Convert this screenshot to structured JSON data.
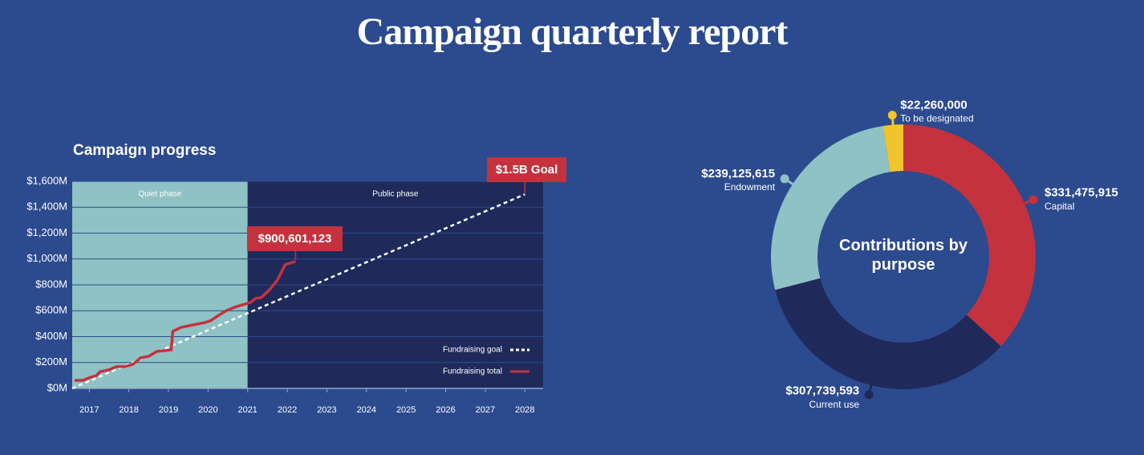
{
  "title": "Campaign quarterly report",
  "chart_data": [
    {
      "type": "line",
      "title": "Campaign progress",
      "bands": [
        {
          "label": "Quiet phase",
          "from": 2016.57,
          "to": 2021,
          "color": "#8fc2c4"
        },
        {
          "label": "Public phase",
          "from": 2021,
          "to": 2028.46,
          "color": "#1f2a5a"
        }
      ],
      "series": [
        {
          "name": "Fundraising goal",
          "color": "#ffffff",
          "style": "dashed",
          "x": [
            2016.57,
            2028
          ],
          "values": [
            0,
            1500
          ]
        },
        {
          "name": "Fundraising total",
          "color": "#c4323d",
          "style": "solid",
          "x": [
            2016.63,
            2016.84,
            2017.04,
            2017.18,
            2017.28,
            2017.49,
            2017.69,
            2017.89,
            2018.1,
            2018.3,
            2018.5,
            2018.71,
            2018.91,
            2019.07,
            2019.11,
            2019.32,
            2019.52,
            2019.72,
            2019.92,
            2020.06,
            2020.27,
            2020.47,
            2020.67,
            2020.87,
            2021.08,
            2021.2,
            2021.34,
            2021.54,
            2021.74,
            2021.95,
            2022.21
          ],
          "values": [
            62,
            62,
            87,
            99,
            130,
            143,
            168,
            168,
            186,
            236,
            248,
            286,
            292,
            298,
            441,
            472,
            484,
            497,
            509,
            522,
            565,
            602,
            627,
            646,
            665,
            696,
            702,
            758,
            832,
            957,
            981
          ]
        }
      ],
      "annotations": [
        "$900,601,123",
        "$1.5B Goal"
      ],
      "xlim": [
        2016.57,
        2028.46
      ],
      "xticks": [
        2017,
        2018,
        2019,
        2020,
        2021,
        2022,
        2023,
        2024,
        2025,
        2026,
        2027,
        2028
      ],
      "ylim": [
        0,
        1600
      ],
      "yticks": [
        {
          "value": 0,
          "label": "$0M"
        },
        {
          "value": 200,
          "label": "$200M"
        },
        {
          "value": 400,
          "label": "$400M"
        },
        {
          "value": 600,
          "label": "$600M"
        },
        {
          "value": 800,
          "label": "$800M"
        },
        {
          "value": 1000,
          "label": "$1,000M"
        },
        {
          "value": 1200,
          "label": "$1,200M"
        },
        {
          "value": 1400,
          "label": "$1,400M"
        },
        {
          "value": 1600,
          "label": "$1,600M"
        }
      ],
      "grid": true,
      "legend": "lower right"
    },
    {
      "type": "donut",
      "title": "Contributions by purpose",
      "categories": [
        "Capital",
        "Current use",
        "Endowment",
        "To be designated"
      ],
      "values": [
        331475915,
        307739593,
        239125615,
        22260000
      ],
      "value_labels": [
        "$331,475,915",
        "$307,739,593",
        "$239,125,615",
        "$22,260,000"
      ],
      "colors": [
        "#c4323d",
        "#1f2a5a",
        "#8fc2c4",
        "#f0c42c"
      ]
    }
  ]
}
